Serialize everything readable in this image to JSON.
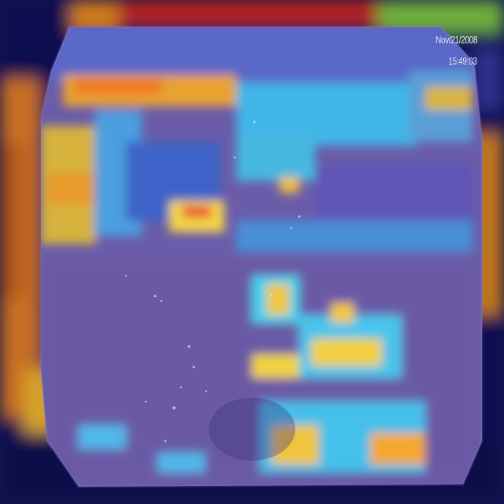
{
  "overlay": {
    "date": "Nov/21/2008",
    "time": "15:49:03"
  },
  "colors": {
    "background_low": "#0a0f52",
    "frame_fill": "#6e5fb0",
    "heat_cyan": "#3fd6ff",
    "heat_yellow": "#f2d240",
    "heat_orange": "#f07a22",
    "heat_red": "#c81e1e"
  }
}
